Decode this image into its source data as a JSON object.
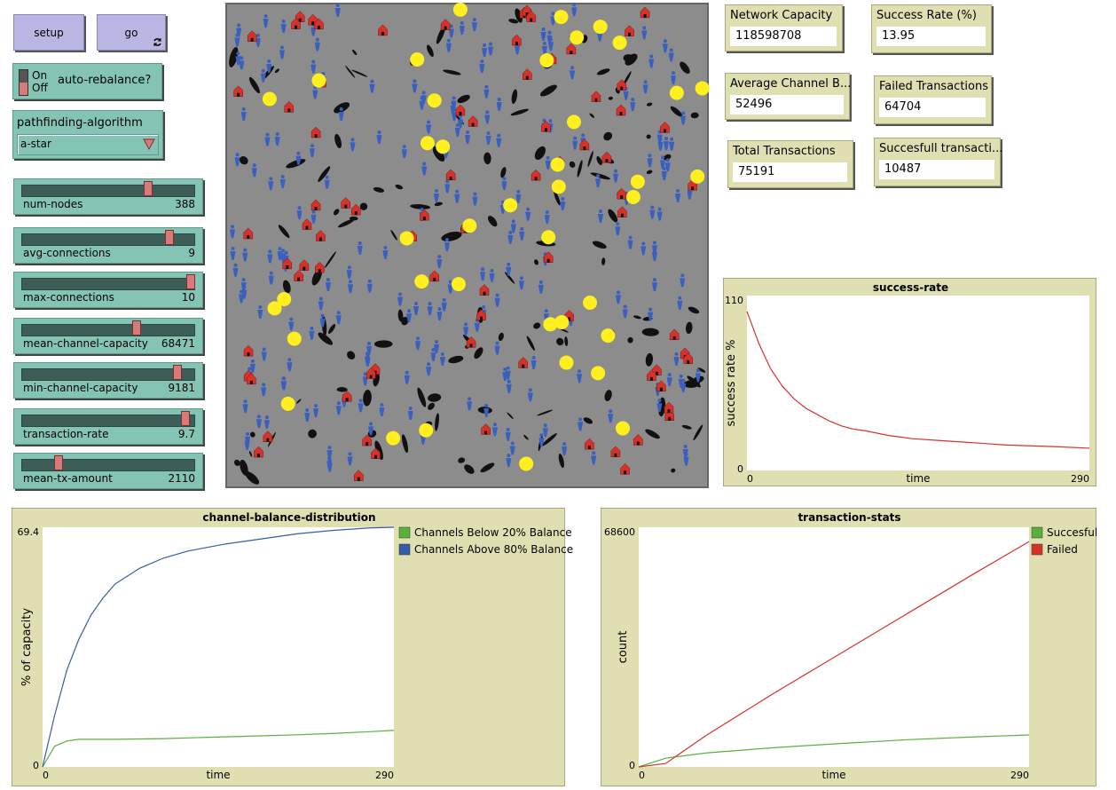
{
  "interface": {
    "buttons": [
      {
        "label": "setup"
      },
      {
        "label": "go"
      }
    ],
    "switch": {
      "on": "On",
      "off": "Off",
      "label": "auto-rebalance?"
    },
    "chooser": {
      "label": "pathfinding-algorithm",
      "value": "a-star"
    },
    "sliders": [
      {
        "label": "num-nodes",
        "value": 388
      },
      {
        "label": "avg-connections",
        "value": 9
      },
      {
        "label": "max-connections",
        "value": 10
      },
      {
        "label": "mean-channel-capacity",
        "value": 68471
      },
      {
        "label": "min-channel-capacity",
        "value": 9181
      },
      {
        "label": "transaction-rate",
        "value": 9.7
      },
      {
        "label": "mean-tx-amount",
        "value": 2110
      }
    ],
    "monitors": [
      {
        "label": "Network Capacity",
        "value": 118598708
      },
      {
        "label": "Success Rate (%)",
        "value": 13.95
      },
      {
        "label": "Average Channel B...",
        "value": 52496
      },
      {
        "label": "Failed Transactions",
        "value": 64704
      },
      {
        "label": "Total Transactions",
        "value": 75191
      },
      {
        "label": "Succesfull transacti...",
        "value": 10487
      }
    ]
  },
  "chart_data": [
    {
      "type": "line",
      "title": "success-rate",
      "xlabel": "time",
      "ylabel": "success rate %",
      "x": [
        0,
        10,
        20,
        30,
        40,
        50,
        60,
        70,
        80,
        90,
        100,
        120,
        140,
        160,
        180,
        200,
        220,
        240,
        260,
        290
      ],
      "series": [
        {
          "color": "#d73229",
          "values": [
            100,
            80,
            64,
            53,
            45,
            39,
            35,
            31,
            28,
            26,
            25,
            22,
            20,
            19,
            18,
            17,
            16,
            15.5,
            15,
            14
          ]
        }
      ],
      "xlim": [
        0,
        290
      ],
      "ylim": [
        0,
        110
      ],
      "xticks": [
        0,
        290
      ],
      "yticks": [
        0,
        110
      ]
    },
    {
      "type": "line",
      "title": "channel-balance-distribution",
      "xlabel": "time",
      "ylabel": "% of capacity",
      "x": [
        0,
        10,
        20,
        30,
        40,
        50,
        60,
        80,
        100,
        120,
        150,
        180,
        210,
        240,
        270,
        290
      ],
      "series": [
        {
          "name": "Channels Below 20% Balance",
          "color": "#59b03c",
          "values": [
            0,
            6,
            7.5,
            8,
            8,
            8,
            8,
            8.1,
            8.2,
            8.4,
            8.7,
            9,
            9.3,
            9.7,
            10.2,
            10.6
          ]
        },
        {
          "name": "Channels Above 80% Balance",
          "color": "#345da8",
          "values": [
            0,
            15,
            28,
            37,
            44,
            49,
            53,
            57.5,
            60.5,
            62.5,
            64.5,
            66,
            67.5,
            68.5,
            69.2,
            69.4
          ]
        }
      ],
      "xlim": [
        0,
        290
      ],
      "ylim": [
        0,
        69.4
      ],
      "xticks": [
        0,
        290
      ],
      "yticks": [
        0,
        69.4
      ]
    },
    {
      "type": "line",
      "title": "transaction-stats",
      "xlabel": "time",
      "ylabel": "count",
      "x": [
        0,
        20,
        50,
        100,
        150,
        200,
        250,
        290
      ],
      "series": [
        {
          "name": "Succesful",
          "color": "#59b03c",
          "values": [
            0,
            2500,
            4000,
            5500,
            6700,
            7800,
            8600,
            9150
          ]
        },
        {
          "name": "Failed",
          "color": "#d73229",
          "values": [
            0,
            1000,
            9000,
            21000,
            32500,
            44000,
            55500,
            64500
          ]
        }
      ],
      "xlim": [
        0,
        290
      ],
      "ylim": [
        0,
        68600
      ],
      "xticks": [
        0,
        290
      ],
      "yticks": [
        0,
        68600
      ]
    }
  ]
}
